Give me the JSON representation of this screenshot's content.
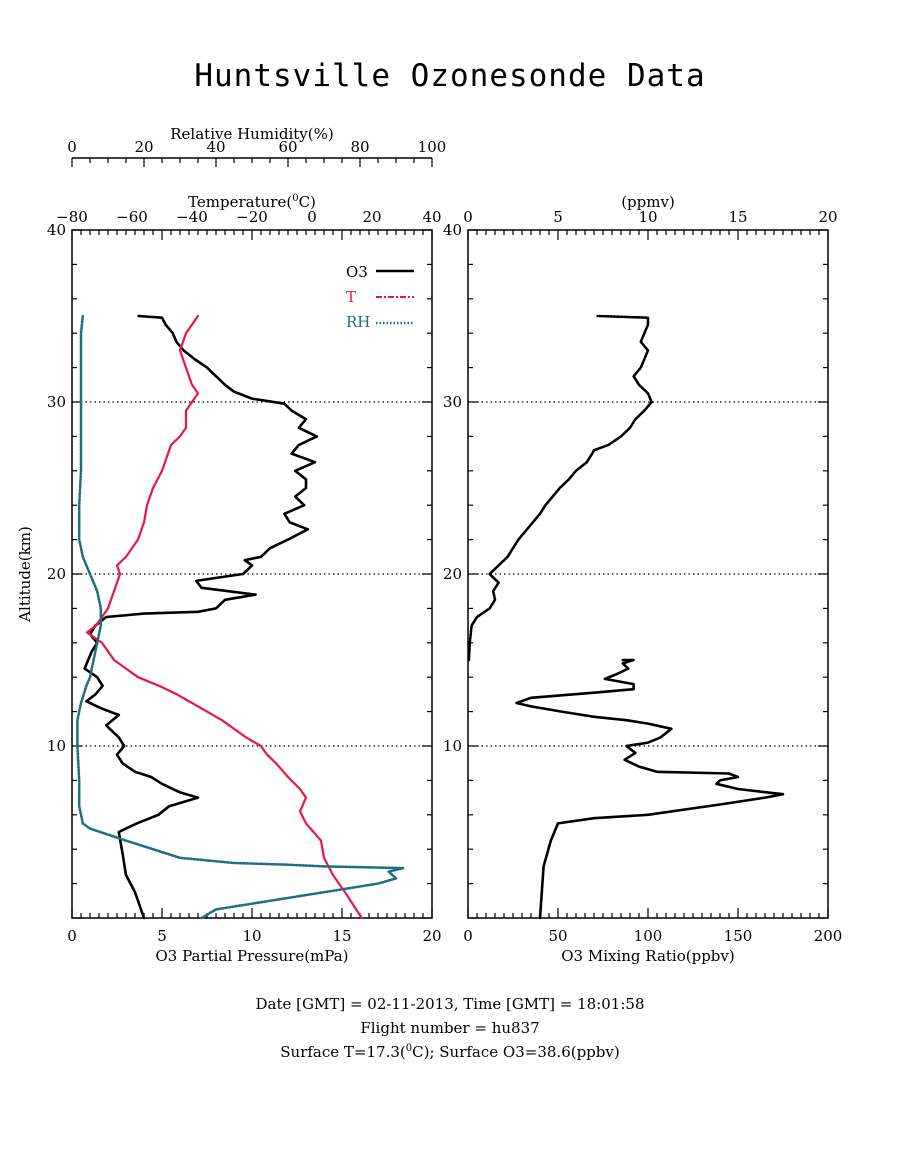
{
  "title": "Huntsville Ozonesonde Data",
  "colors": {
    "o3": "#000000",
    "t": "#e8174a",
    "rh": "#1e6f80"
  },
  "left_panel": {
    "y_label": "Altitude(km)",
    "y_ticks": [
      "10",
      "20",
      "30",
      "40"
    ],
    "bottom_label": "O3 Partial Pressure(mPa)",
    "bottom_ticks": [
      "0",
      "5",
      "10",
      "15",
      "20"
    ],
    "temp_label": "Temperature(°C)",
    "temp_label_main": "Temperature(",
    "temp_label_sup": "0",
    "temp_label_end": "C)",
    "temp_ticks": [
      "−80",
      "−60",
      "−40",
      "−20",
      "0",
      "20",
      "40"
    ],
    "rh_label": "Relative Humidity(%)",
    "rh_ticks": [
      "0",
      "20",
      "40",
      "60",
      "80",
      "100"
    ],
    "legend": [
      "O3",
      "T",
      "RH"
    ]
  },
  "right_panel": {
    "y_ticks": [
      "10",
      "20",
      "30",
      "40"
    ],
    "bottom_label": "O3 Mixing Ratio(ppbv)",
    "bottom_ticks": [
      "0",
      "50",
      "100",
      "150",
      "200"
    ],
    "top_label": "(ppmv)",
    "top_ticks": [
      "0",
      "5",
      "10",
      "15",
      "20"
    ]
  },
  "footer": {
    "line1": "Date [GMT] = 02-11-2013,  Time [GMT] = 18:01:58",
    "line2": "Flight number = hu837",
    "line3_a": "Surface T=17.3(",
    "line3_sup": "0",
    "line3_b": "C); Surface O3=38.6(ppbv)"
  },
  "chart_data": [
    {
      "type": "line",
      "panel": "left",
      "ylabel": "Altitude(km)",
      "ylim": [
        0,
        40
      ],
      "gridlines_y": [
        10,
        20,
        30
      ],
      "legend_placement": "top-right",
      "series": [
        {
          "name": "O3",
          "axis": "O3 Partial Pressure(mPa)",
          "xlim": [
            0,
            20
          ],
          "points": [
            [
              4.0,
              0
            ],
            [
              3.5,
              1.5
            ],
            [
              3.0,
              2.5
            ],
            [
              2.8,
              3.8
            ],
            [
              2.6,
              5.0
            ],
            [
              3.6,
              5.5
            ],
            [
              4.8,
              6.0
            ],
            [
              5.4,
              6.5
            ],
            [
              7.0,
              7.0
            ],
            [
              6.0,
              7.3
            ],
            [
              5.0,
              7.8
            ],
            [
              4.4,
              8.2
            ],
            [
              3.5,
              8.5
            ],
            [
              2.8,
              9.0
            ],
            [
              2.5,
              9.5
            ],
            [
              2.9,
              10.0
            ],
            [
              2.6,
              10.5
            ],
            [
              1.9,
              11.2
            ],
            [
              2.6,
              11.8
            ],
            [
              1.6,
              12.2
            ],
            [
              0.8,
              12.6
            ],
            [
              1.3,
              13.0
            ],
            [
              1.7,
              13.5
            ],
            [
              1.4,
              14.0
            ],
            [
              0.7,
              14.5
            ],
            [
              1.1,
              15.5
            ],
            [
              1.4,
              16.0
            ],
            [
              1.0,
              16.5
            ],
            [
              1.3,
              17.0
            ],
            [
              1.9,
              17.5
            ],
            [
              4.0,
              17.7
            ],
            [
              7.0,
              17.8
            ],
            [
              8.0,
              18.0
            ],
            [
              8.5,
              18.5
            ],
            [
              10.2,
              18.8
            ],
            [
              7.2,
              19.2
            ],
            [
              6.9,
              19.6
            ],
            [
              8.2,
              19.8
            ],
            [
              9.5,
              20.0
            ],
            [
              10.0,
              20.5
            ],
            [
              9.6,
              20.8
            ],
            [
              10.5,
              21.0
            ],
            [
              11.0,
              21.5
            ],
            [
              12.0,
              22.0
            ],
            [
              13.1,
              22.6
            ],
            [
              12.1,
              23.0
            ],
            [
              11.8,
              23.5
            ],
            [
              12.9,
              24.0
            ],
            [
              12.4,
              24.5
            ],
            [
              13.0,
              25.0
            ],
            [
              13.0,
              25.5
            ],
            [
              12.4,
              26.0
            ],
            [
              13.5,
              26.5
            ],
            [
              12.2,
              27.0
            ],
            [
              12.6,
              27.5
            ],
            [
              13.6,
              28.0
            ],
            [
              12.6,
              28.5
            ],
            [
              13.0,
              29.0
            ],
            [
              12.2,
              29.5
            ],
            [
              11.8,
              29.9
            ],
            [
              10.0,
              30.2
            ],
            [
              9.0,
              30.6
            ],
            [
              8.5,
              31.0
            ],
            [
              8.0,
              31.5
            ],
            [
              7.5,
              32.0
            ],
            [
              6.8,
              32.5
            ],
            [
              6.2,
              33.0
            ],
            [
              5.8,
              33.5
            ],
            [
              5.6,
              34.0
            ],
            [
              5.2,
              34.5
            ],
            [
              5.0,
              34.9
            ],
            [
              3.7,
              35.0
            ]
          ]
        },
        {
          "name": "T",
          "axis": "Temperature(°C)",
          "xlim": [
            -80,
            40
          ],
          "points": [
            [
              16.6,
              0
            ],
            [
              11,
              1.5
            ],
            [
              9,
              2.0
            ],
            [
              7,
              2.5
            ],
            [
              4,
              3.5
            ],
            [
              3,
              4.5
            ],
            [
              -2,
              5.5
            ],
            [
              -4,
              6.2
            ],
            [
              -2,
              7.0
            ],
            [
              -4,
              7.5
            ],
            [
              -8,
              8.2
            ],
            [
              -12,
              9.0
            ],
            [
              -15,
              9.5
            ],
            [
              -17,
              10.0
            ],
            [
              -22,
              10.5
            ],
            [
              -26,
              11.0
            ],
            [
              -30,
              11.5
            ],
            [
              -35,
              12.0
            ],
            [
              -40,
              12.5
            ],
            [
              -45,
              13.0
            ],
            [
              -51,
              13.5
            ],
            [
              -58,
              14.0
            ],
            [
              -62,
              14.5
            ],
            [
              -66,
              15.0
            ],
            [
              -70,
              16.0
            ],
            [
              -75,
              16.6
            ],
            [
              -72,
              17.0
            ],
            [
              -70,
              17.5
            ],
            [
              -68,
              18.0
            ],
            [
              -66,
              19.0
            ],
            [
              -64,
              20.0
            ],
            [
              -65,
              20.5
            ],
            [
              -62,
              21.0
            ],
            [
              -58,
              22.0
            ],
            [
              -56,
              23.0
            ],
            [
              -55,
              24.0
            ],
            [
              -53,
              25.0
            ],
            [
              -50,
              26.0
            ],
            [
              -48,
              27.0
            ],
            [
              -47,
              27.5
            ],
            [
              -44,
              28.0
            ],
            [
              -42,
              28.5
            ],
            [
              -42,
              29.5
            ],
            [
              -40,
              30.0
            ],
            [
              -38,
              30.5
            ],
            [
              -40,
              31.0
            ],
            [
              -42,
              32.0
            ],
            [
              -44,
              33.0
            ],
            [
              -42,
              34.0
            ],
            [
              -38,
              35.0
            ]
          ]
        },
        {
          "name": "RH",
          "axis": "Relative Humidity(%)",
          "xlim": [
            0,
            100
          ],
          "points": [
            [
              36,
              0
            ],
            [
              40,
              0.5
            ],
            [
              55,
              1.0
            ],
            [
              70,
              1.5
            ],
            [
              85,
              2.0
            ],
            [
              90,
              2.3
            ],
            [
              88,
              2.7
            ],
            [
              92,
              2.9
            ],
            [
              70,
              3.0
            ],
            [
              60,
              3.1
            ],
            [
              45,
              3.2
            ],
            [
              30,
              3.5
            ],
            [
              15,
              4.5
            ],
            [
              5,
              5.2
            ],
            [
              3,
              5.5
            ],
            [
              2.0,
              6.5
            ],
            [
              2.0,
              8.0
            ],
            [
              1.5,
              10.0
            ],
            [
              1.5,
              11.5
            ],
            [
              2.5,
              12.5
            ],
            [
              4,
              13.5
            ],
            [
              5,
              14.0
            ],
            [
              6,
              15.0
            ],
            [
              7,
              16.0
            ],
            [
              8,
              17.0
            ],
            [
              8,
              18.0
            ],
            [
              7,
              19.0
            ],
            [
              5,
              20.0
            ],
            [
              3,
              21.0
            ],
            [
              2.0,
              22.0
            ],
            [
              2.0,
              24.0
            ],
            [
              2.5,
              26.0
            ],
            [
              2.5,
              28.0
            ],
            [
              2.5,
              30.0
            ],
            [
              2.5,
              32.0
            ],
            [
              2.5,
              34.0
            ],
            [
              3,
              35.0
            ]
          ]
        }
      ]
    },
    {
      "type": "line",
      "panel": "right",
      "ylim": [
        0,
        40
      ],
      "gridlines_y": [
        10,
        20,
        30
      ],
      "series": [
        {
          "name": "O3",
          "axis": "O3 Mixing Ratio(ppbv)",
          "xlim": [
            0,
            200
          ],
          "points": [
            [
              40,
              0
            ],
            [
              41,
              1.5
            ],
            [
              42,
              3.0
            ],
            [
              46,
              4.5
            ],
            [
              48,
              5.0
            ],
            [
              50,
              5.5
            ],
            [
              70,
              5.8
            ],
            [
              100,
              6.0
            ],
            [
              120,
              6.3
            ],
            [
              140,
              6.6
            ],
            [
              165,
              7.0
            ],
            [
              175,
              7.2
            ],
            [
              150,
              7.5
            ],
            [
              138,
              7.8
            ],
            [
              140,
              8.0
            ],
            [
              150,
              8.2
            ],
            [
              145,
              8.4
            ],
            [
              105,
              8.5
            ],
            [
              95,
              8.8
            ],
            [
              87,
              9.2
            ],
            [
              93,
              9.6
            ],
            [
              88,
              10.0
            ],
            [
              100,
              10.2
            ],
            [
              107,
              10.5
            ],
            [
              113,
              11.0
            ],
            [
              100,
              11.3
            ],
            [
              88,
              11.5
            ],
            [
              70,
              11.7
            ],
            [
              52,
              12.0
            ],
            [
              35,
              12.3
            ],
            [
              27,
              12.5
            ],
            [
              35,
              12.8
            ],
            [
              70,
              13.1
            ],
            [
              92,
              13.3
            ],
            [
              92,
              13.6
            ],
            [
              76,
              13.9
            ],
            [
              83,
              14.2
            ],
            [
              89,
              14.5
            ],
            [
              86,
              14.8
            ],
            [
              92,
              15.0
            ],
            [
              86,
              15.0
            ]
          ]
        },
        {
          "name": "O3 (ppmv)",
          "axis": "(ppmv)",
          "xlim": [
            0,
            20
          ],
          "points": [
            [
              0.05,
              15.0
            ],
            [
              0.1,
              16.0
            ],
            [
              0.2,
              17.0
            ],
            [
              0.5,
              17.5
            ],
            [
              1.2,
              18.0
            ],
            [
              1.5,
              18.5
            ],
            [
              1.4,
              19.0
            ],
            [
              1.7,
              19.5
            ],
            [
              1.2,
              20.0
            ],
            [
              1.7,
              20.5
            ],
            [
              2.2,
              21.0
            ],
            [
              2.5,
              21.5
            ],
            [
              2.8,
              22.0
            ],
            [
              3.2,
              22.5
            ],
            [
              3.6,
              23.0
            ],
            [
              4.0,
              23.5
            ],
            [
              4.3,
              24.0
            ],
            [
              4.7,
              24.5
            ],
            [
              5.1,
              25.0
            ],
            [
              5.6,
              25.5
            ],
            [
              6.0,
              26.0
            ],
            [
              6.6,
              26.5
            ],
            [
              6.9,
              27.0
            ],
            [
              7.0,
              27.2
            ],
            [
              7.8,
              27.5
            ],
            [
              8.5,
              28.0
            ],
            [
              9.0,
              28.5
            ],
            [
              9.3,
              29.0
            ],
            [
              9.8,
              29.5
            ],
            [
              10.2,
              30.0
            ],
            [
              10.0,
              30.5
            ],
            [
              9.5,
              31.0
            ],
            [
              9.2,
              31.5
            ],
            [
              9.6,
              32.0
            ],
            [
              9.8,
              32.5
            ],
            [
              10.0,
              33.0
            ],
            [
              9.6,
              33.5
            ],
            [
              9.8,
              34.0
            ],
            [
              10.0,
              34.5
            ],
            [
              10.0,
              34.9
            ],
            [
              7.2,
              35.0
            ]
          ]
        }
      ]
    }
  ]
}
